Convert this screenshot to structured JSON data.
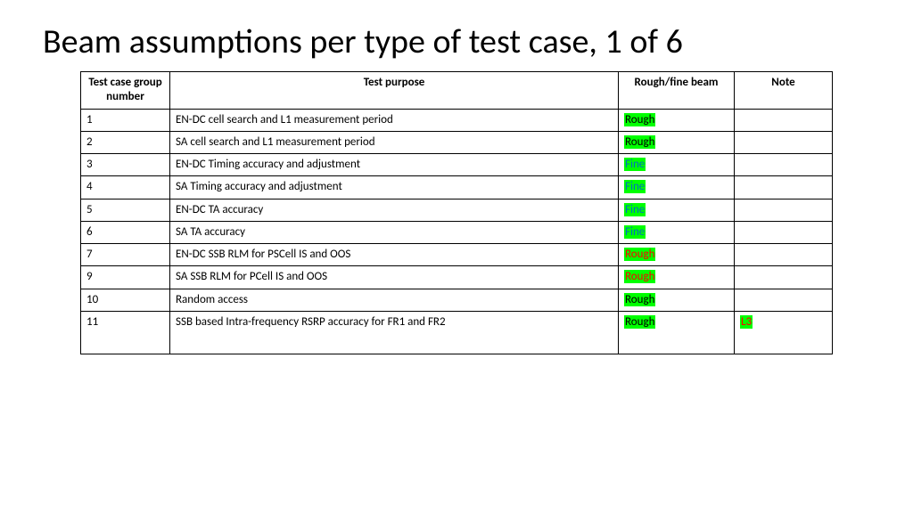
{
  "title": "Beam assumptions per type of test case, 1 of 6",
  "colors": {
    "highlight_bg": "#00ff00",
    "rough_fg": "#ff0000",
    "fine_fg": "#0070c0",
    "note_fg": "#ff0000",
    "text": "#000000",
    "background": "#ffffff",
    "border": "#000000"
  },
  "table": {
    "headers": {
      "group": "Test case group number",
      "purpose": "Test purpose",
      "beam": "Rough/fine beam",
      "note": "Note"
    },
    "rows": [
      {
        "group": "1",
        "purpose": "EN-DC cell search and L1 measurement period",
        "beam": "Rough",
        "beam_kind": "rough",
        "note": ""
      },
      {
        "group": "2",
        "purpose": "SA cell search and L1 measurement period",
        "beam": "Rough",
        "beam_kind": "rough",
        "note": ""
      },
      {
        "group": "3",
        "purpose": "EN-DC Timing accuracy and adjustment",
        "beam": "Fine",
        "beam_kind": "fine",
        "note": ""
      },
      {
        "group": "4",
        "purpose": "SA Timing accuracy and adjustment",
        "beam": "Fine",
        "beam_kind": "fine",
        "note": ""
      },
      {
        "group": "5",
        "purpose": "EN-DC TA accuracy",
        "beam": "Fine",
        "beam_kind": "fine",
        "note": ""
      },
      {
        "group": "6",
        "purpose": "SA TA accuracy",
        "beam": "Fine",
        "beam_kind": "fine",
        "note": ""
      },
      {
        "group": "7",
        "purpose": "EN-DC SSB RLM for PSCell IS and OOS",
        "beam": "Rough",
        "beam_kind": "rough_red",
        "note": ""
      },
      {
        "group": "9",
        "purpose": "SA SSB RLM for PCell IS and OOS",
        "beam": "Rough",
        "beam_kind": "rough_red",
        "note": ""
      },
      {
        "group": "10",
        "purpose": "Random access",
        "beam": "Rough",
        "beam_kind": "rough",
        "note": ""
      },
      {
        "group": "11",
        "purpose": "SSB based Intra-frequency RSRP accuracy for FR1 and FR2",
        "beam": "Rough",
        "beam_kind": "rough",
        "note": "L3"
      }
    ]
  }
}
